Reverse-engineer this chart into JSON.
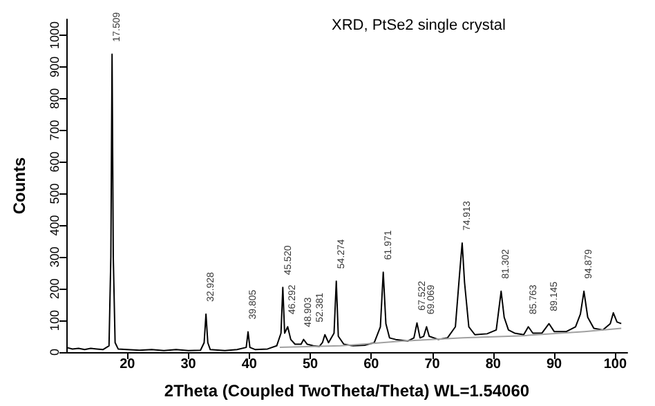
{
  "chart_data": {
    "type": "line",
    "title": "XRD, PtSe2 single crystal",
    "xlabel": "2Theta (Coupled TwoTheta/Theta) WL=1.54060",
    "ylabel": "Counts",
    "xlim": [
      10,
      102
    ],
    "xticks": [
      20,
      30,
      40,
      50,
      60,
      70,
      80,
      90,
      100
    ],
    "ylim": [
      0,
      1050
    ],
    "yticks": [
      0,
      100,
      200,
      300,
      400,
      500,
      600,
      700,
      800,
      900,
      1000
    ],
    "grid": false,
    "marker": "none",
    "line_style": "solid",
    "series": [
      {
        "color": "#000000",
        "x": [
          10,
          11,
          12,
          13,
          14,
          15,
          16,
          17,
          17.3,
          17.5,
          17.7,
          18,
          18.5,
          20,
          22,
          24,
          26,
          28,
          30,
          32,
          32.6,
          32.9,
          33.2,
          33.6,
          36,
          38,
          39.5,
          39.8,
          40.1,
          41,
          43,
          44.5,
          45.2,
          45.5,
          45.8,
          46.3,
          46.8,
          47.5,
          48.5,
          48.9,
          49.5,
          50.5,
          51.5,
          52,
          52.4,
          53,
          53.9,
          54.27,
          54.6,
          55.5,
          57,
          59,
          60.5,
          61.5,
          61.97,
          62.4,
          63,
          64,
          66,
          67,
          67.5,
          68,
          68.6,
          69.07,
          69.5,
          71,
          72.5,
          73.8,
          74.5,
          74.91,
          75.3,
          76,
          77,
          79,
          80.5,
          81.3,
          81.8,
          82.5,
          83.5,
          85,
          85.76,
          86.5,
          88,
          89.15,
          90,
          92,
          93.5,
          94.3,
          94.88,
          95.5,
          96.5,
          98,
          99.2,
          99.7,
          100.3,
          101
        ],
        "values": [
          15,
          10,
          12,
          8,
          12,
          10,
          8,
          20,
          300,
          940,
          300,
          30,
          10,
          8,
          6,
          8,
          5,
          8,
          5,
          6,
          30,
          120,
          30,
          8,
          5,
          8,
          15,
          64,
          15,
          8,
          10,
          20,
          60,
          204,
          60,
          80,
          40,
          25,
          25,
          40,
          25,
          20,
          18,
          30,
          55,
          30,
          60,
          224,
          50,
          25,
          20,
          22,
          30,
          80,
          252,
          90,
          45,
          40,
          35,
          45,
          92,
          45,
          50,
          80,
          50,
          40,
          45,
          80,
          250,
          344,
          220,
          80,
          55,
          58,
          70,
          192,
          110,
          70,
          60,
          55,
          80,
          60,
          60,
          90,
          65,
          65,
          80,
          120,
          192,
          110,
          75,
          70,
          90,
          124,
          95,
          90
        ]
      },
      {
        "color": "#a0a0a0",
        "x": [
          45,
          55,
          65,
          75,
          85,
          95,
          101
        ],
        "values": [
          15,
          20,
          35,
          45,
          52,
          65,
          75
        ]
      }
    ],
    "annotations": [
      {
        "text": "17.509",
        "x": 17.509,
        "y": 940
      },
      {
        "text": "32.928",
        "x": 32.928,
        "y": 120
      },
      {
        "text": "39.805",
        "x": 39.805,
        "y": 64
      },
      {
        "text": "45.520",
        "x": 45.52,
        "y": 204
      },
      {
        "text": "46.292",
        "x": 46.292,
        "y": 80
      },
      {
        "text": "48.903",
        "x": 48.903,
        "y": 40
      },
      {
        "text": "52.381",
        "x": 52.381,
        "y": 55
      },
      {
        "text": "54.274",
        "x": 54.274,
        "y": 224
      },
      {
        "text": "61.971",
        "x": 61.971,
        "y": 252
      },
      {
        "text": "67.522",
        "x": 67.522,
        "y": 92
      },
      {
        "text": "69.069",
        "x": 69.069,
        "y": 80
      },
      {
        "text": "74.913",
        "x": 74.913,
        "y": 344
      },
      {
        "text": "81.302",
        "x": 81.302,
        "y": 192
      },
      {
        "text": "85.763",
        "x": 85.763,
        "y": 80
      },
      {
        "text": "89.145",
        "x": 89.145,
        "y": 90
      },
      {
        "text": "94.879",
        "x": 94.879,
        "y": 192
      }
    ]
  }
}
